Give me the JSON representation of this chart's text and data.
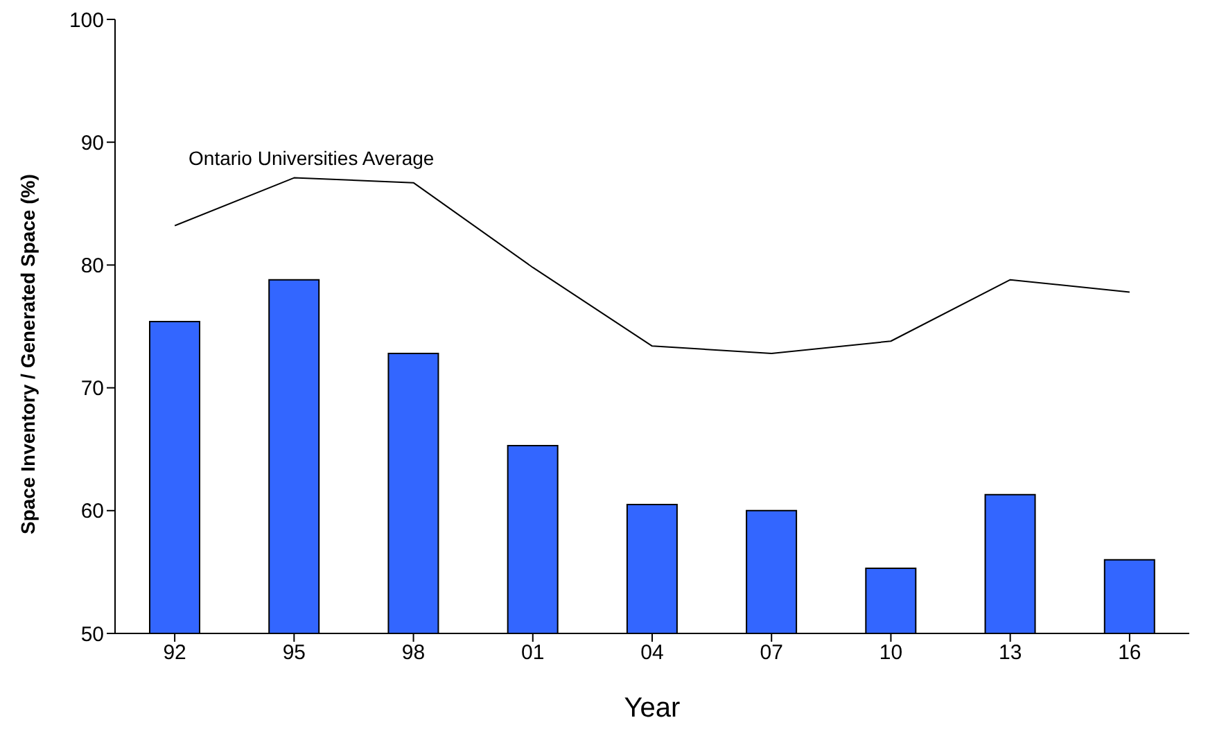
{
  "chart_data": {
    "type": "bar",
    "xlabel": "Year",
    "ylabel": "Space Inventory / Generated Space (%)",
    "categories": [
      "92",
      "95",
      "98",
      "01",
      "04",
      "07",
      "10",
      "13",
      "16"
    ],
    "series": [
      {
        "color": "#3366ff",
        "values": [
          75.4,
          78.8,
          72.8,
          65.3,
          60.5,
          60.0,
          55.3,
          61.3,
          56.0
        ]
      },
      {
        "type": "line",
        "name": "Ontario Universities Average",
        "color": "#000000",
        "values": [
          83.2,
          87.1,
          86.7,
          79.8,
          73.4,
          72.8,
          73.8,
          78.8,
          77.8
        ]
      }
    ],
    "ylim": [
      50,
      100
    ],
    "yticks": [
      50,
      60,
      70,
      80,
      90,
      100
    ],
    "grid": false,
    "legend": false,
    "marker": "none",
    "line_style": "solid"
  }
}
